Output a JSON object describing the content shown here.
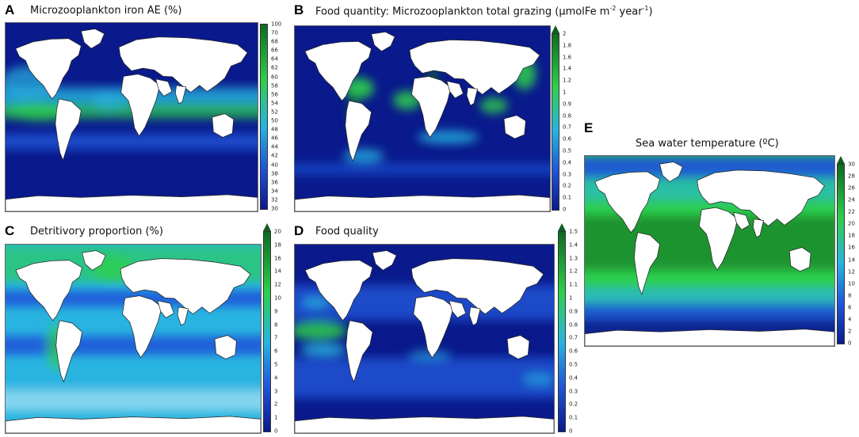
{
  "panels": [
    {
      "id": "A",
      "label": "A",
      "title": "Microzooplankton iron AE (%)",
      "title_unit": "",
      "title_sup": "",
      "title_end": "",
      "colorbar": {
        "ticks": [
          "100",
          "70",
          "68",
          "66",
          "64",
          "62",
          "60",
          "58",
          "56",
          "54",
          "52",
          "50",
          "48",
          "46",
          "44",
          "42",
          "40",
          "38",
          "36",
          "34",
          "32",
          "30"
        ],
        "extend_arrow": false
      }
    },
    {
      "id": "B",
      "label": "B",
      "title": "Food quantity: Microzooplankton total grazing (µmolFe m",
      "title_unit": "",
      "title_sup": "-2",
      "title_end": " year",
      "title_sup2": "-1",
      "title_close": ")",
      "colorbar": {
        "ticks": [
          "2",
          "1.8",
          "1.6",
          "1.4",
          "1.2",
          "1",
          "0.9",
          "0.8",
          "0.7",
          "0.6",
          "0.5",
          "0.4",
          "0.3",
          "0.2",
          "0.1",
          "0"
        ],
        "extend_arrow": true
      }
    },
    {
      "id": "C",
      "label": "C",
      "title": "Detritivory proportion (%)",
      "colorbar": {
        "ticks": [
          "20",
          "18",
          "16",
          "14",
          "12",
          "10",
          "9",
          "8",
          "7",
          "6",
          "5",
          "4",
          "3",
          "2",
          "1",
          "0"
        ],
        "extend_arrow": true
      }
    },
    {
      "id": "D",
      "label": "D",
      "title": "Food quality",
      "colorbar": {
        "ticks": [
          "1.5",
          "1.4",
          "1.3",
          "1.2",
          "1.1",
          "1",
          "0.9",
          "0.8",
          "0.7",
          "0.6",
          "0.5",
          "0.4",
          "0.3",
          "0.2",
          "0.1",
          "0"
        ],
        "extend_arrow": true
      }
    },
    {
      "id": "E",
      "label": "E",
      "title": "Sea water temperature (ºC)",
      "colorbar": {
        "ticks": [
          "30",
          "28",
          "26",
          "24",
          "22",
          "20",
          "18",
          "16",
          "14",
          "12",
          "10",
          "8",
          "6",
          "4",
          "2",
          "0"
        ],
        "extend_arrow": true
      }
    }
  ],
  "colors": {
    "low": "#0a1a8c",
    "mid_blue": "#1f55d8",
    "cyan": "#28b4e0",
    "green": "#2ecf4c",
    "dark_green": "#0e6b22",
    "land": "#ffffff"
  }
}
